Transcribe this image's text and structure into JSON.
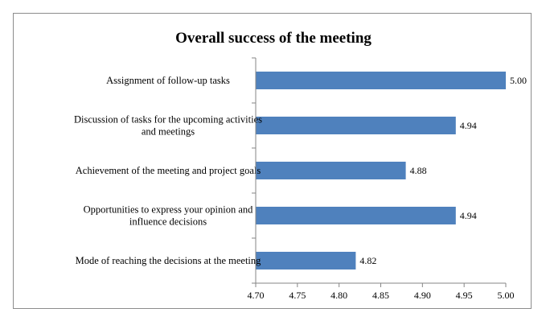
{
  "chart_data": {
    "type": "bar",
    "orientation": "horizontal",
    "title": "Overall success of the meeting",
    "categories": [
      [
        "Assignment of follow-up tasks"
      ],
      [
        "Discussion of tasks for the upcoming activities",
        "and meetings"
      ],
      [
        "Achievement of the meeting and project goals"
      ],
      [
        "Opportunities to express your opinion and",
        "influence decisions"
      ],
      [
        "Mode of reaching the decisions at the meeting"
      ]
    ],
    "values": [
      5.0,
      4.94,
      4.88,
      4.94,
      4.82
    ],
    "data_labels": [
      "5.00",
      "4.94",
      "4.88",
      "4.94",
      "4.82"
    ],
    "xlim": [
      4.7,
      5.0
    ],
    "xticks": [
      "4.70",
      "4.75",
      "4.80",
      "4.85",
      "4.90",
      "4.95",
      "5.00"
    ],
    "grid": false,
    "legend": "none",
    "bar_color": "#4f81bd",
    "axis_color": "#868686"
  }
}
